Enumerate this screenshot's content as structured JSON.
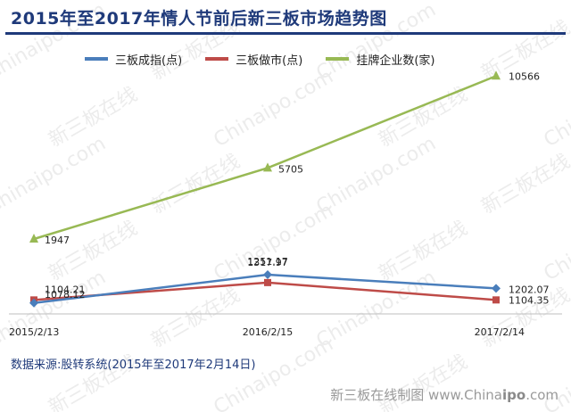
{
  "chart_data": {
    "type": "line",
    "title": "2015年至2017年情人节前后新三板市场趋势图",
    "categories": [
      "2015/2/13",
      "2016/2/15",
      "2017/2/14"
    ],
    "series": [
      {
        "name": "三板成指(点)",
        "values": [
          1078.12,
          1317.97,
          1202.07
        ],
        "labels": [
          "1078.12",
          "1317.97",
          "1202.07"
        ],
        "color": "#4a7ebb",
        "marker": "diamond"
      },
      {
        "name": "三板做市(点)",
        "values": [
          1104.21,
          1251.17,
          1104.35
        ],
        "labels": [
          "1104.21",
          "1251.17",
          "1104.35"
        ],
        "color": "#be4b48",
        "marker": "square"
      },
      {
        "name": "挂牌企业数(家)",
        "values": [
          1947,
          5705,
          10566
        ],
        "labels": [
          "1947",
          "5705",
          "10566"
        ],
        "color": "#98b954",
        "marker": "triangle"
      }
    ],
    "grid": false,
    "legend_position": "top"
  },
  "source_note": "数据来源:股转系统(2015年至2017年2月14日)",
  "footer": {
    "prefix": "新三板在线制图 www.China",
    "brand": "ipo",
    "suffix": ".com"
  },
  "watermark": {
    "latin": "Chinaipo.com",
    "cjk": "新三板在线",
    "color": "#ececec"
  }
}
